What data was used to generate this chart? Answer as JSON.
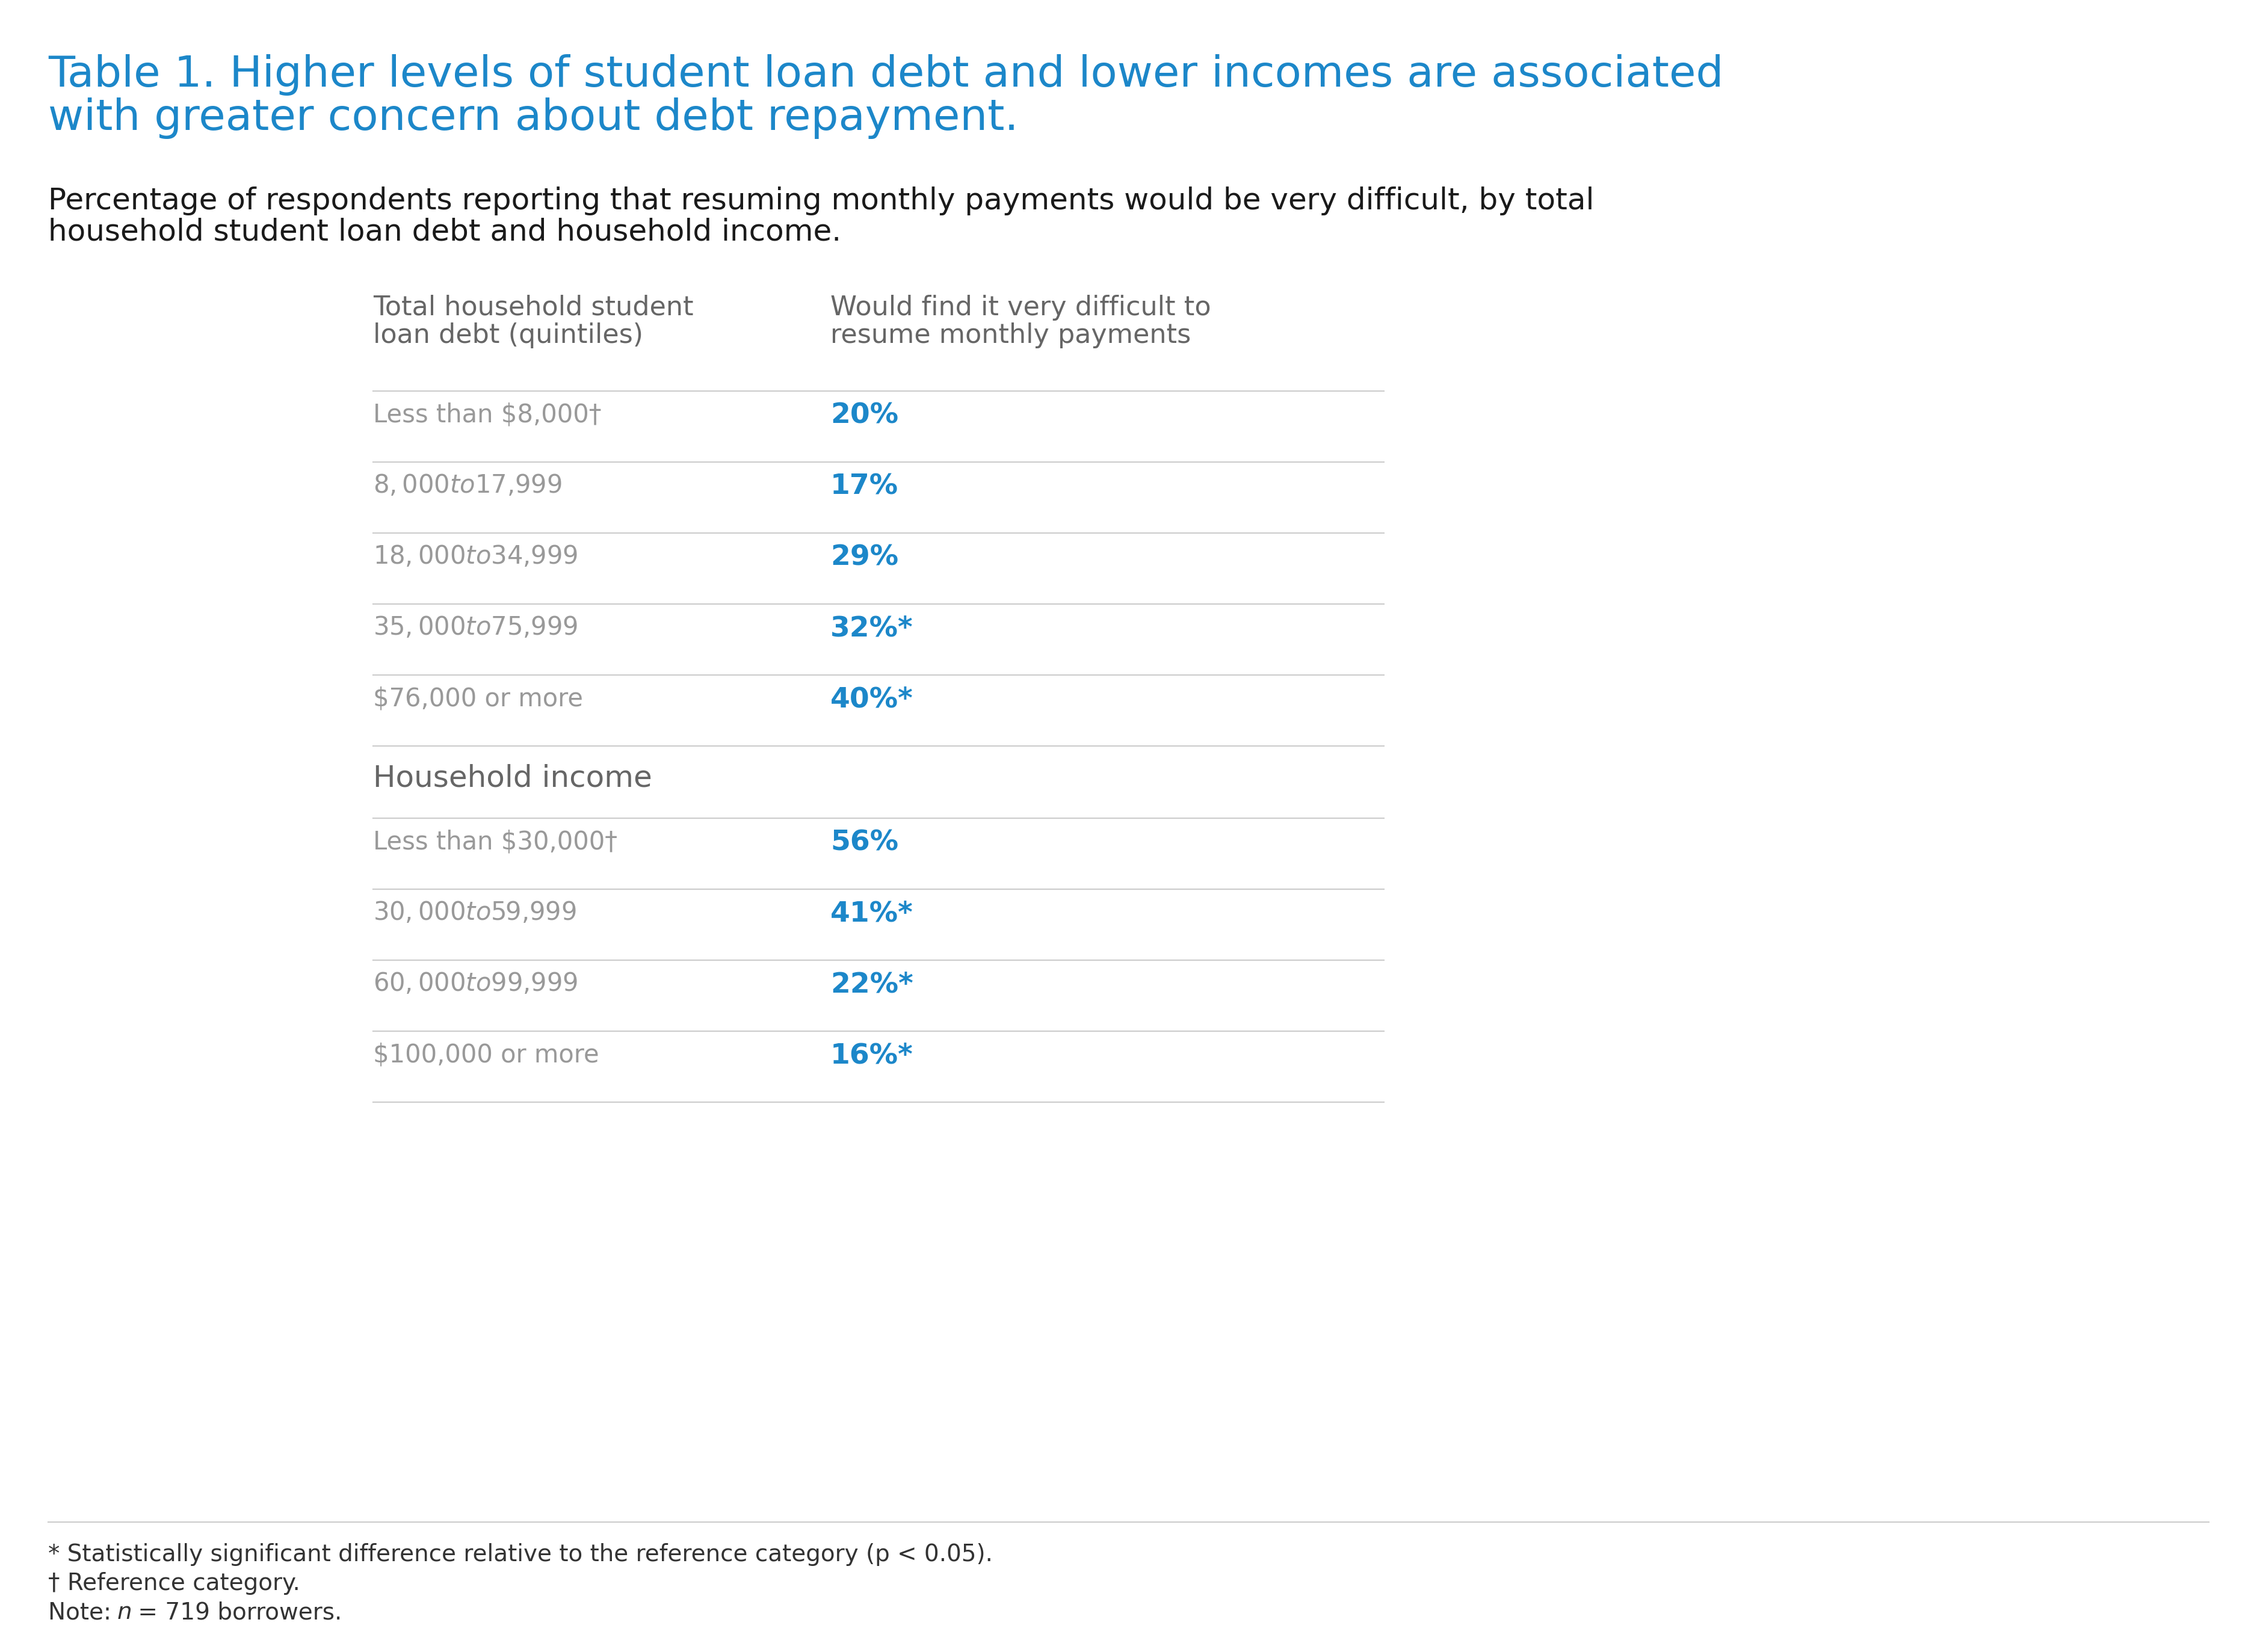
{
  "title_line1": "Table 1. Higher levels of student loan debt and lower incomes are associated",
  "title_line2": "with greater concern about debt repayment.",
  "subtitle_line1": "Percentage of respondents reporting that resuming monthly payments would be very difficult, by total",
  "subtitle_line2": "household student loan debt and household income.",
  "col1_header_line1": "Total household student",
  "col1_header_line2": "loan debt (quintiles)",
  "col2_header_line1": "Would find it very difficult to",
  "col2_header_line2": "resume monthly payments",
  "debt_rows": [
    {
      "label": "Less than $8,000†",
      "value": "20%",
      "sig": false
    },
    {
      "label": "$8,000 to $17,999",
      "value": "17%",
      "sig": false
    },
    {
      "label": "$18,000 to $34,999",
      "value": "29%",
      "sig": false
    },
    {
      "label": "$35,000 to $75,999",
      "value": "32%*",
      "sig": true
    },
    {
      "label": "$76,000 or more",
      "value": "40%*",
      "sig": true
    }
  ],
  "income_section_header": "Household income",
  "income_rows": [
    {
      "label": "Less than $30,000†",
      "value": "56%",
      "sig": false
    },
    {
      "label": "$30,000 to $59,999",
      "value": "41%*",
      "sig": true
    },
    {
      "label": "$60,000 to $99,999",
      "value": "22%*",
      "sig": true
    },
    {
      "label": "$100,000 or more",
      "value": "16%*",
      "sig": true
    }
  ],
  "footnote1": "* Statistically significant difference relative to the reference category (p < 0.05).",
  "footnote2": "† Reference category.",
  "footnote3_prefix": "Note: ",
  "footnote3_n": "n",
  "footnote3_suffix": " = 719 borrowers.",
  "title_color": "#1c87c9",
  "subtitle_color": "#1a1a1a",
  "header_color": "#666666",
  "label_color": "#999999",
  "value_color": "#1c87c9",
  "section_header_color": "#666666",
  "footnote_color": "#333333",
  "line_color": "#cccccc",
  "bg_color": "#ffffff",
  "title_fontsize": 52,
  "subtitle_fontsize": 36,
  "header_fontsize": 32,
  "label_fontsize": 30,
  "value_fontsize": 34,
  "section_header_fontsize": 36,
  "footnote_fontsize": 28
}
